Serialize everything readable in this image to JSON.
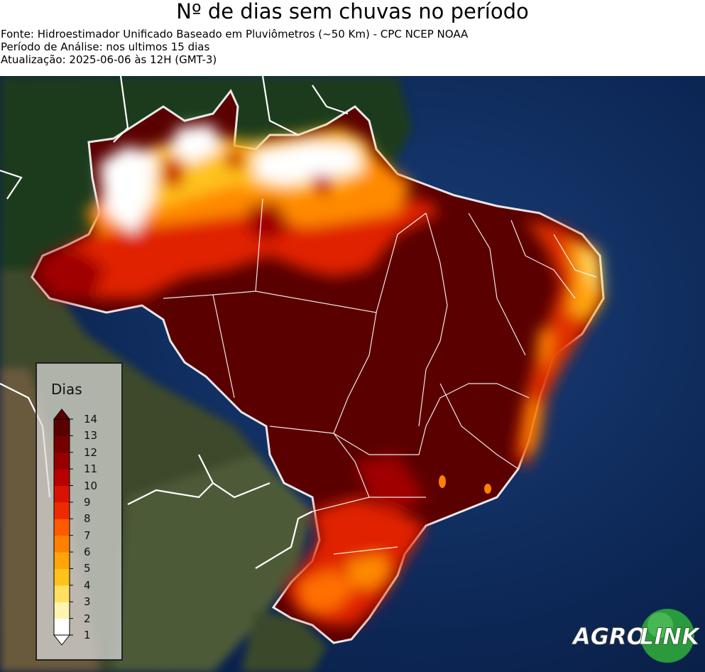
{
  "header": {
    "title": "Nº de dias sem chuvas no período",
    "source": "Fonte: Hidroestimador Unificado Baseado em Pluviômetros (~50 Km) - CPC NCEP NOAA",
    "period": "Período de Análise: nos ultimos 15 dias",
    "updated": "Atualização: 2025-06-06 às 12H (GMT-3)"
  },
  "legend": {
    "title": "Dias",
    "ticks": [
      "1",
      "2",
      "3",
      "4",
      "5",
      "6",
      "7",
      "8",
      "9",
      "10",
      "11",
      "12",
      "13",
      "14"
    ],
    "colors": [
      "#ffffff",
      "#fff3b0",
      "#ffe060",
      "#ffc21a",
      "#ffa40a",
      "#ff8000",
      "#ff5a00",
      "#f02a00",
      "#d81200",
      "#b80000",
      "#960000",
      "#760000",
      "#5a0000"
    ]
  },
  "logo": {
    "part1": "AGRO",
    "part2": "LINK",
    "color": "#2a9a3c"
  }
}
